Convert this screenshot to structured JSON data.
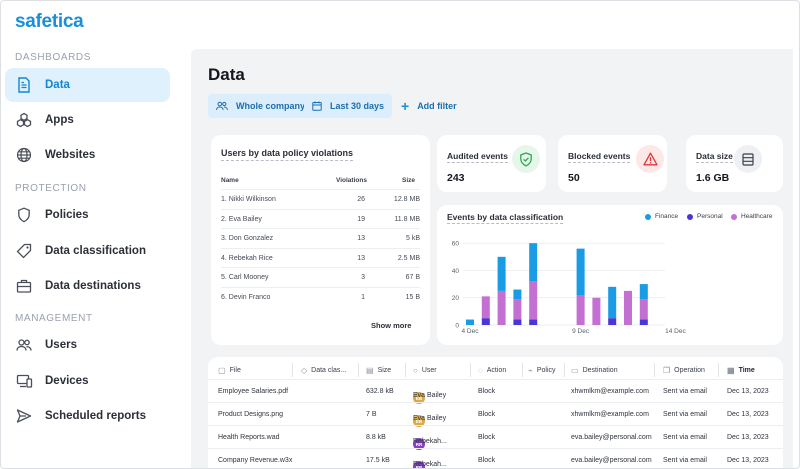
{
  "app": {
    "logo": "safetica"
  },
  "sidebar": {
    "sections": [
      {
        "label": "DASHBOARDS"
      },
      {
        "label": "PROTECTION"
      },
      {
        "label": "MANAGEMENT"
      }
    ],
    "items": [
      {
        "label": "Data",
        "icon": "document-icon",
        "active": true
      },
      {
        "label": "Apps",
        "icon": "apps-icon"
      },
      {
        "label": "Websites",
        "icon": "globe-icon"
      },
      {
        "label": "Policies",
        "icon": "shield-icon"
      },
      {
        "label": "Data classification",
        "icon": "tag-icon"
      },
      {
        "label": "Data destinations",
        "icon": "briefcase-icon"
      },
      {
        "label": "Users",
        "icon": "users-icon"
      },
      {
        "label": "Devices",
        "icon": "devices-icon"
      },
      {
        "label": "Scheduled reports",
        "icon": "send-icon"
      }
    ]
  },
  "main": {
    "title": "Data",
    "filters": {
      "scope": "Whole company",
      "range": "Last 30 days",
      "add": "Add filter"
    }
  },
  "users_card": {
    "title": "Users by data policy violations",
    "columns": [
      "Name",
      "Violations",
      "Size"
    ],
    "rows": [
      {
        "name": "1. Nikki Wilkinson",
        "violations": "26",
        "size": "12.8 MB"
      },
      {
        "name": "2. Eva Bailey",
        "violations": "19",
        "size": "11.8 MB"
      },
      {
        "name": "3. Don Gonzalez",
        "violations": "13",
        "size": "5 kB"
      },
      {
        "name": "4. Rebekah Rice",
        "violations": "13",
        "size": "2.5 MB"
      },
      {
        "name": "5. Carl Mooney",
        "violations": "3",
        "size": "67 B"
      },
      {
        "name": "6. Devin Franco",
        "violations": "1",
        "size": "15 B"
      }
    ],
    "show_more": "Show more"
  },
  "stats": [
    {
      "label": "Audited events",
      "value": "243",
      "icon": "shield-check-icon",
      "color": "#2fa84f",
      "bg": "#e6f6ea"
    },
    {
      "label": "Blocked events",
      "value": "50",
      "icon": "warning-icon",
      "color": "#e0343b",
      "bg": "#fde8e8"
    },
    {
      "label": "Data size",
      "value": "1.6 GB",
      "icon": "database-icon",
      "color": "#3a3f4a",
      "bg": "#eef0f3"
    }
  ],
  "chart_data": {
    "type": "bar",
    "title": "Events by data classification",
    "stacked": true,
    "x_tick_labels": [
      "4 Dec",
      "9 Dec",
      "14 Dec"
    ],
    "y_ticks": [
      0,
      20,
      40,
      60
    ],
    "ylim": [
      0,
      66
    ],
    "legend": [
      {
        "name": "Finance",
        "color": "#1a9be6"
      },
      {
        "name": "Personal",
        "color": "#4a35d6"
      },
      {
        "name": "Healthcare",
        "color": "#c46fd2"
      }
    ],
    "bars": [
      {
        "x": 1,
        "finance": 4,
        "personal": 0,
        "healthcare": 0
      },
      {
        "x": 2,
        "finance": 0,
        "personal": 5,
        "healthcare": 16
      },
      {
        "x": 3,
        "finance": 25,
        "personal": 0,
        "healthcare": 25
      },
      {
        "x": 4,
        "finance": 7,
        "personal": 4,
        "healthcare": 15
      },
      {
        "x": 5,
        "finance": 28,
        "personal": 4,
        "healthcare": 28
      },
      {
        "x": 8,
        "finance": 34,
        "personal": 0,
        "healthcare": 22
      },
      {
        "x": 9,
        "finance": 0,
        "personal": 0,
        "healthcare": 20
      },
      {
        "x": 10,
        "finance": 23,
        "personal": 5,
        "healthcare": 0
      },
      {
        "x": 11,
        "finance": 0,
        "personal": 0,
        "healthcare": 25
      },
      {
        "x": 12,
        "finance": 11,
        "personal": 4,
        "healthcare": 15
      }
    ]
  },
  "events_table": {
    "columns": [
      {
        "label": "File",
        "icon": "file-icon"
      },
      {
        "label": "Data clas...",
        "icon": "tag-icon"
      },
      {
        "label": "Size",
        "icon": "database-icon"
      },
      {
        "label": "User",
        "icon": "user-icon"
      },
      {
        "label": "Action",
        "icon": "shield-icon"
      },
      {
        "label": "Policy",
        "icon": "policy-icon"
      },
      {
        "label": "Destination",
        "icon": "destination-icon"
      },
      {
        "label": "Operation",
        "icon": "copy-icon"
      },
      {
        "label": "Time",
        "icon": "calendar-icon"
      }
    ],
    "rows": [
      {
        "file": "Employee Salaries.pdf",
        "size": "632.8 kB",
        "initials": "EB",
        "user": "Eva Bailey",
        "avatar_color": "#d9a94a",
        "action": "Block",
        "destination": "xhwmlkm@example.com",
        "operation": "Sent via email",
        "time": "Dec 13, 2023"
      },
      {
        "file": "Product Designs.png",
        "size": "7 B",
        "initials": "EB",
        "user": "Eva Bailey",
        "avatar_color": "#d9a94a",
        "action": "Block",
        "destination": "xhwmlkm@example.com",
        "operation": "Sent via email",
        "time": "Dec 13, 2023"
      },
      {
        "file": "Health Reports.wad",
        "size": "8.8 kB",
        "initials": "RR",
        "user": "Rebekah...",
        "avatar_color": "#8a3fc7",
        "action": "Block",
        "destination": "eva.bailey@personal.com",
        "operation": "Sent via email",
        "time": "Dec 13, 2023"
      },
      {
        "file": "Company Revenue.w3x",
        "size": "17.5 kB",
        "initials": "RR",
        "user": "Rebekah...",
        "avatar_color": "#8a3fc7",
        "action": "Block",
        "destination": "eva.bailey@personal.com",
        "operation": "Sent via email",
        "time": "Dec 13, 2023"
      }
    ]
  }
}
